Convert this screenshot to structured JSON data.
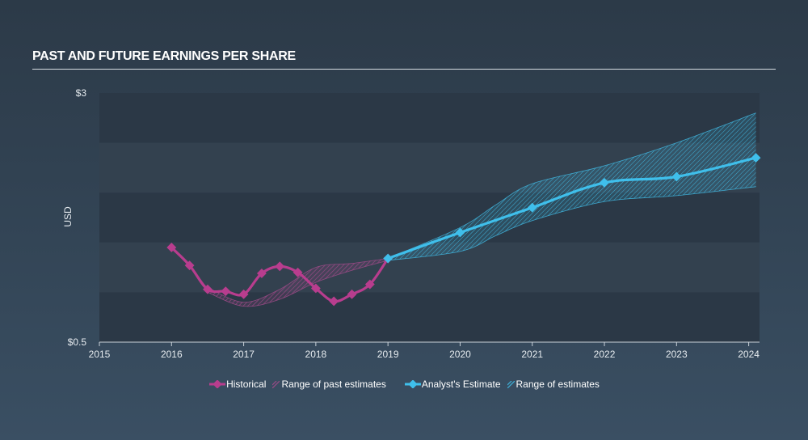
{
  "title": "PAST AND FUTURE EARNINGS PER SHARE",
  "colors": {
    "historical": "#b83d8e",
    "estimate": "#3fbfeb",
    "past_range": "#9a4a86",
    "future_range": "#3fb0d8",
    "band_dark": "#2b3846",
    "band_light": "#33414f"
  },
  "chart_data": {
    "type": "line",
    "title": "PAST AND FUTURE EARNINGS PER SHARE",
    "ylabel": "USD",
    "xlabel": "",
    "ylim": [
      0.5,
      3
    ],
    "xlim": [
      2015,
      2024.15
    ],
    "y_tick_labels": [
      {
        "value": 3,
        "label": "$3"
      },
      {
        "value": 0.5,
        "label": "$0.5"
      }
    ],
    "x_ticks": [
      2015,
      2016,
      2017,
      2018,
      2019,
      2020,
      2021,
      2022,
      2023,
      2024
    ],
    "series": [
      {
        "name": "Historical",
        "x": [
          2016.0,
          2016.25,
          2016.5,
          2016.75,
          2017.0,
          2017.25,
          2017.5,
          2017.75,
          2018.0,
          2018.25,
          2018.5,
          2018.75,
          2019.0
        ],
        "values": [
          1.45,
          1.27,
          1.03,
          1.01,
          0.98,
          1.19,
          1.26,
          1.2,
          1.04,
          0.91,
          0.98,
          1.08,
          1.34
        ]
      },
      {
        "name": "Analyst's Estimate",
        "x": [
          2019.0,
          2020.0,
          2021.0,
          2022.0,
          2023.0,
          2024.1
        ],
        "values": [
          1.34,
          1.6,
          1.85,
          2.1,
          2.16,
          2.35
        ]
      }
    ],
    "ranges": [
      {
        "name": "Range of past estimates",
        "x": [
          2016.5,
          2017.0,
          2017.5,
          2018.0,
          2018.5,
          2019.0
        ],
        "low": [
          1.0,
          0.86,
          0.93,
          1.1,
          1.22,
          1.32
        ],
        "high": [
          1.05,
          0.9,
          1.03,
          1.25,
          1.29,
          1.34
        ]
      },
      {
        "name": "Range of estimates",
        "x": [
          2019.0,
          2020.0,
          2020.5,
          2021.0,
          2022.0,
          2023.0,
          2024.1
        ],
        "low": [
          1.32,
          1.41,
          1.57,
          1.72,
          1.91,
          1.97,
          2.06
        ],
        "high": [
          1.34,
          1.65,
          1.88,
          2.09,
          2.27,
          2.5,
          2.8
        ]
      }
    ]
  },
  "legend": {
    "historical": "Historical",
    "past_range": "Range of past estimates",
    "estimate": "Analyst's Estimate",
    "future_range": "Range of estimates"
  }
}
